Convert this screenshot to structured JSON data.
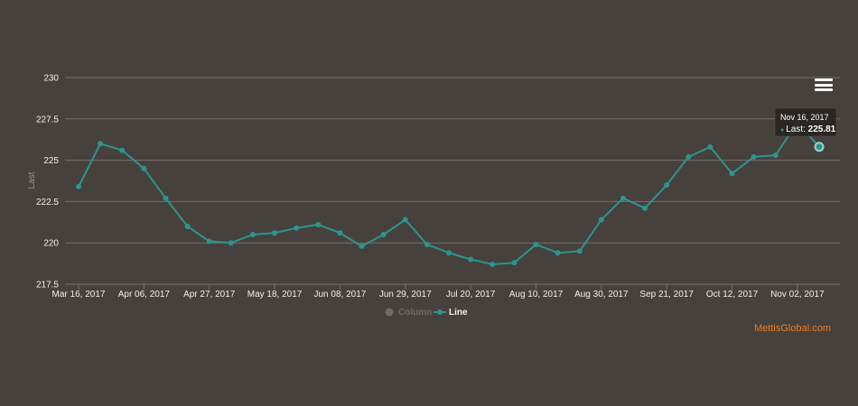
{
  "chart_data": {
    "type": "line",
    "ylabel": "Last",
    "ylim": [
      217.5,
      230
    ],
    "yticks": [
      217.5,
      220,
      222.5,
      225,
      227.5,
      230
    ],
    "ytick_labels": [
      "217.5",
      "220",
      "222.5",
      "225",
      "227.5",
      "230"
    ],
    "xtick_labels": [
      "Mar 16, 2017",
      "Apr 06, 2017",
      "Apr 27, 2017",
      "May 18, 2017",
      "Jun 08, 2017",
      "Jun 29, 2017",
      "Jul 20, 2017",
      "Aug 10, 2017",
      "Aug 30, 2017",
      "Sep 21, 2017",
      "Oct 12, 2017",
      "Nov 02, 2017"
    ],
    "grid": true,
    "legend": {
      "placement": "bottom-center",
      "items": [
        {
          "label": "Column",
          "color": "#6e6a65",
          "hidden": true
        },
        {
          "label": "Line",
          "color": "#2e948f",
          "hidden": false
        }
      ]
    },
    "series": [
      {
        "name": "Line",
        "color": "#2e948f",
        "values": [
          223.4,
          226.0,
          225.6,
          224.5,
          222.7,
          221.0,
          220.1,
          220.0,
          220.5,
          220.6,
          220.9,
          221.1,
          220.6,
          219.8,
          220.5,
          221.4,
          219.9,
          219.4,
          219.0,
          218.7,
          218.8,
          219.9,
          219.4,
          219.5,
          221.4,
          222.7,
          222.1,
          223.5,
          225.2,
          225.8,
          224.2,
          225.2,
          225.3,
          227.3,
          225.81
        ]
      }
    ],
    "tooltip": {
      "date": "Nov 16, 2017",
      "label": "Last:",
      "value": "225.81",
      "bullet": "●"
    }
  },
  "toolbar": {
    "menu_icon": "hamburger-menu-icon"
  },
  "credit": "MettisGlobal.com",
  "colors": {
    "background": "#46413c",
    "grid": "#77716b",
    "line": "#2e948f",
    "tooltip_bg": "#262321",
    "credit": "#f07d1e"
  }
}
